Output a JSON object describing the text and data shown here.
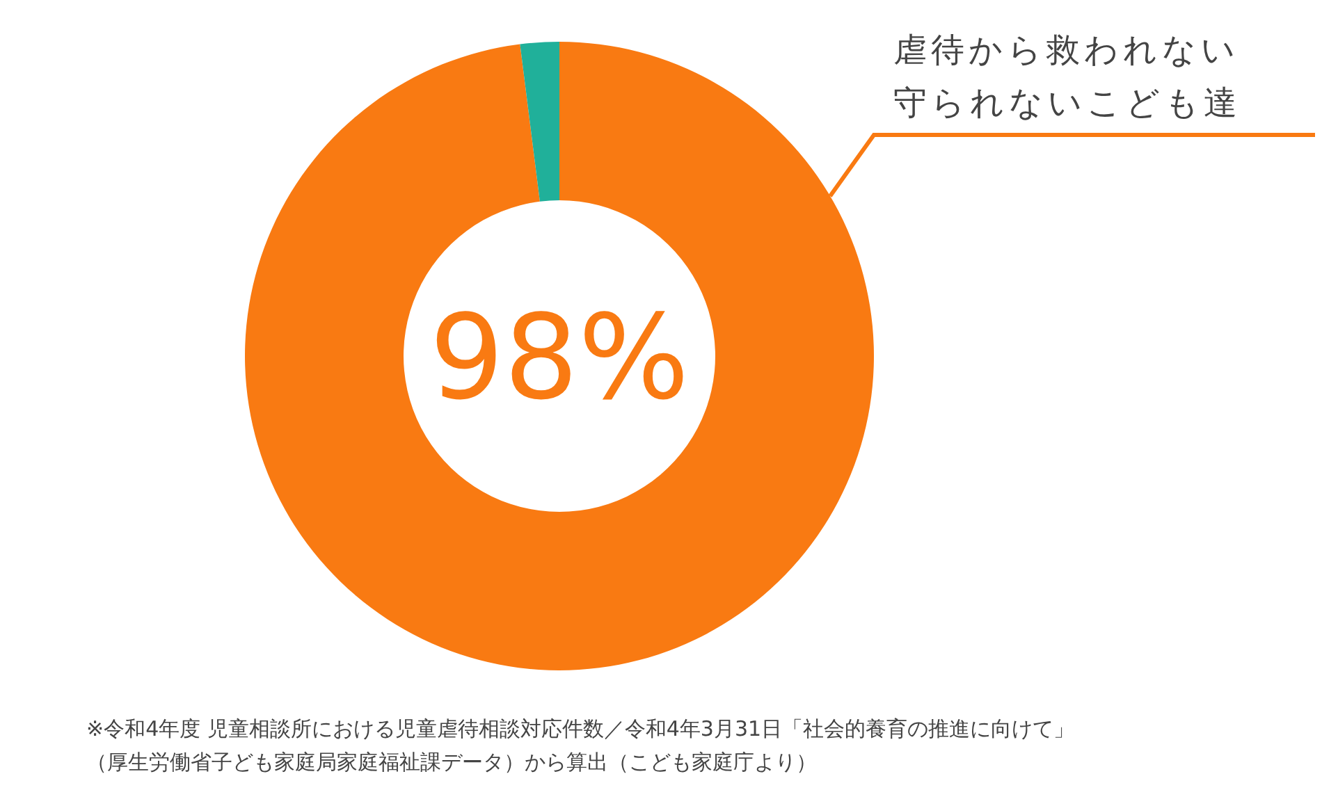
{
  "chart_data": {
    "type": "donut",
    "categories": [
      "虐待から救われない守られないこども達",
      null
    ],
    "values": [
      98,
      2
    ],
    "colors": [
      "#f97a12",
      "#20b09a"
    ],
    "value_labels": [
      "98%",
      null
    ],
    "annotations": [
      "※令和4年度 児童相談所における児童虐待相談対応件数／令和4年3月31日「社会的養育の推進に向けて」",
      "（厚生労働省子ども家庭局家庭福祉課データ）から算出（こども家庭庁より）"
    ]
  }
}
